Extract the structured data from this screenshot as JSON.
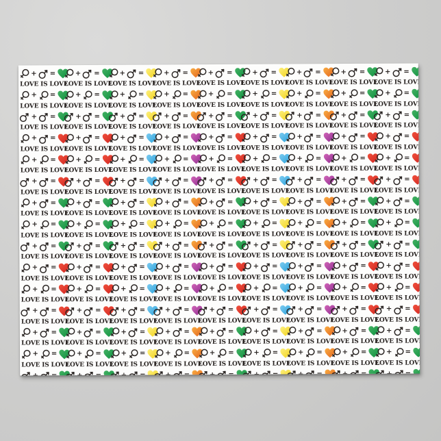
{
  "scene": {
    "background_top": "#dbdbda",
    "background_bottom": "#c5c5c4",
    "shadow_color": "rgba(0,0,0,0.30)"
  },
  "poster": {
    "background": "#fdfdfc",
    "ink_color": "#2a2523",
    "caption": "LOVE IS LOVE",
    "plus_sign": "+",
    "equals_sign": "=",
    "rows": 15,
    "columns": 9,
    "combo_cycle": [
      "female-male",
      "female-female",
      "male-male"
    ],
    "block_sequence": [
      "a",
      "a",
      "a",
      "b",
      "b",
      "b",
      "a",
      "a",
      "a",
      "b",
      "b",
      "b",
      "a",
      "a",
      "a"
    ],
    "column_palettes": [
      {
        "a": "green",
        "b": "red"
      },
      {
        "a": "green",
        "b": "red"
      },
      {
        "a": "yellow",
        "b": "blue"
      },
      {
        "a": "orange",
        "b": "magenta"
      },
      {
        "a": "green",
        "b": "red"
      },
      {
        "a": "yellow",
        "b": "blue"
      },
      {
        "a": "orange",
        "b": "magenta"
      },
      {
        "a": "green",
        "b": "red"
      },
      {
        "a": "green",
        "b": "red"
      }
    ],
    "heart_colors": {
      "green": {
        "light": "#44b163",
        "dark": "#0f9140"
      },
      "red": {
        "light": "#f0503c",
        "dark": "#d02621"
      },
      "yellow": {
        "light": "#fdf07e",
        "dark": "#f2d21d"
      },
      "orange": {
        "light": "#f9ad42",
        "dark": "#e2641e"
      },
      "blue": {
        "light": "#7ecbf0",
        "dark": "#2aa3dc"
      },
      "magenta": {
        "light": "#d266b7",
        "dark": "#8f2d92"
      }
    },
    "icons": {
      "female": "female-symbol",
      "male": "male-symbol",
      "heart": "heart"
    }
  }
}
